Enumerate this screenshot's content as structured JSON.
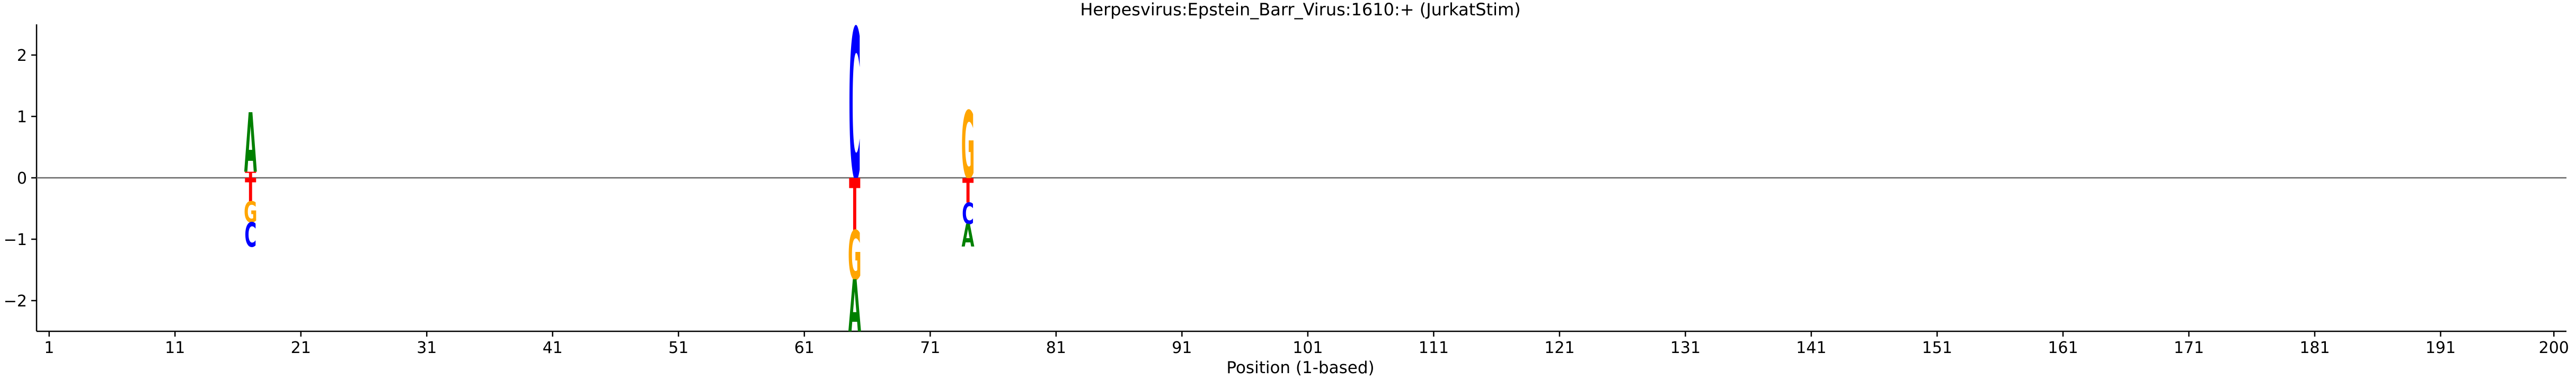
{
  "chart_data": {
    "type": "logo",
    "title": "Herpesvirus:Epstein_Barr_Virus:1610:+  (JurkatStim)",
    "xlabel": "Position (1-based)",
    "ylabel": "",
    "xlim": [
      0,
      201
    ],
    "ylim": [
      -2.5,
      2.5
    ],
    "x_ticks": [
      1,
      11,
      21,
      31,
      41,
      51,
      61,
      71,
      81,
      91,
      101,
      111,
      121,
      131,
      141,
      151,
      161,
      171,
      181,
      191,
      200
    ],
    "y_ticks": [
      -2,
      -1,
      0,
      1,
      2
    ],
    "baseline": 0,
    "colors": {
      "A": "#008000",
      "C": "#0000ff",
      "G": "#ffa500",
      "T": "#ff0000"
    },
    "positions": [
      {
        "pos": 17,
        "letters": [
          {
            "base": "T",
            "y0": 0.0,
            "y1": 0.1
          },
          {
            "base": "A",
            "y0": 0.1,
            "y1": 1.07
          },
          {
            "base": "T",
            "y0": -0.38,
            "y1": 0.0
          },
          {
            "base": "G",
            "y0": -0.72,
            "y1": -0.38
          },
          {
            "base": "C",
            "y0": -1.12,
            "y1": -0.72
          }
        ]
      },
      {
        "pos": 65,
        "letters": [
          {
            "base": "C",
            "y0": 0.0,
            "y1": 2.45
          },
          {
            "base": "T",
            "y0": -0.85,
            "y1": 0.0
          },
          {
            "base": "G",
            "y0": -1.65,
            "y1": -0.85
          },
          {
            "base": "A",
            "y0": -2.5,
            "y1": -1.65
          }
        ]
      },
      {
        "pos": 74,
        "letters": [
          {
            "base": "G",
            "y0": 0.0,
            "y1": 1.1
          },
          {
            "base": "T",
            "y0": -0.4,
            "y1": 0.0
          },
          {
            "base": "C",
            "y0": -0.75,
            "y1": -0.4
          },
          {
            "base": "A",
            "y0": -1.12,
            "y1": -0.75
          }
        ]
      }
    ]
  }
}
